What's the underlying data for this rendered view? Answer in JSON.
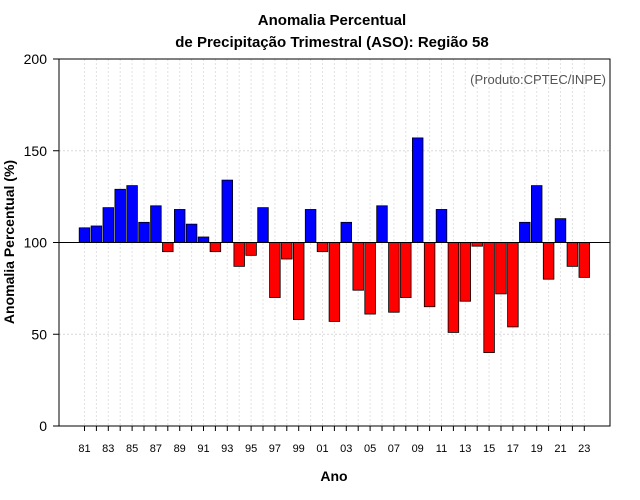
{
  "chart_data": {
    "type": "bar",
    "title": "Anomalia Percentual",
    "subtitle": "de Precipitação Trimestral (ASO): Região 58",
    "xlabel": "Ano",
    "ylabel": "Anomalia Percentual (%)",
    "annotation": "(Produto:CPTEC/INPE)",
    "ylim": [
      0,
      200
    ],
    "yticks": [
      0,
      50,
      100,
      150,
      200
    ],
    "baseline": 100,
    "colors": {
      "above": "#0000ff",
      "below": "#ff0000",
      "outline": "#000000"
    },
    "categories": [
      "81",
      "82",
      "83",
      "84",
      "85",
      "86",
      "87",
      "88",
      "89",
      "90",
      "91",
      "92",
      "93",
      "94",
      "95",
      "96",
      "97",
      "98",
      "99",
      "00",
      "01",
      "02",
      "03",
      "04",
      "05",
      "06",
      "07",
      "08",
      "09",
      "10",
      "11",
      "12",
      "13",
      "14",
      "15",
      "16",
      "17",
      "18",
      "19",
      "20",
      "21",
      "22",
      "23"
    ],
    "xtick_labels": [
      "81",
      "83",
      "85",
      "87",
      "89",
      "91",
      "93",
      "95",
      "97",
      "99",
      "01",
      "03",
      "05",
      "07",
      "09",
      "11",
      "13",
      "15",
      "17",
      "19",
      "21",
      "23"
    ],
    "values": [
      108,
      109,
      119,
      129,
      131,
      111,
      120,
      95,
      118,
      110,
      103,
      95,
      134,
      87,
      93,
      119,
      70,
      91,
      58,
      118,
      95,
      57,
      111,
      74,
      61,
      120,
      62,
      70,
      157,
      65,
      118,
      51,
      68,
      98,
      40,
      72,
      54,
      111,
      131,
      80,
      113,
      87,
      81
    ]
  }
}
